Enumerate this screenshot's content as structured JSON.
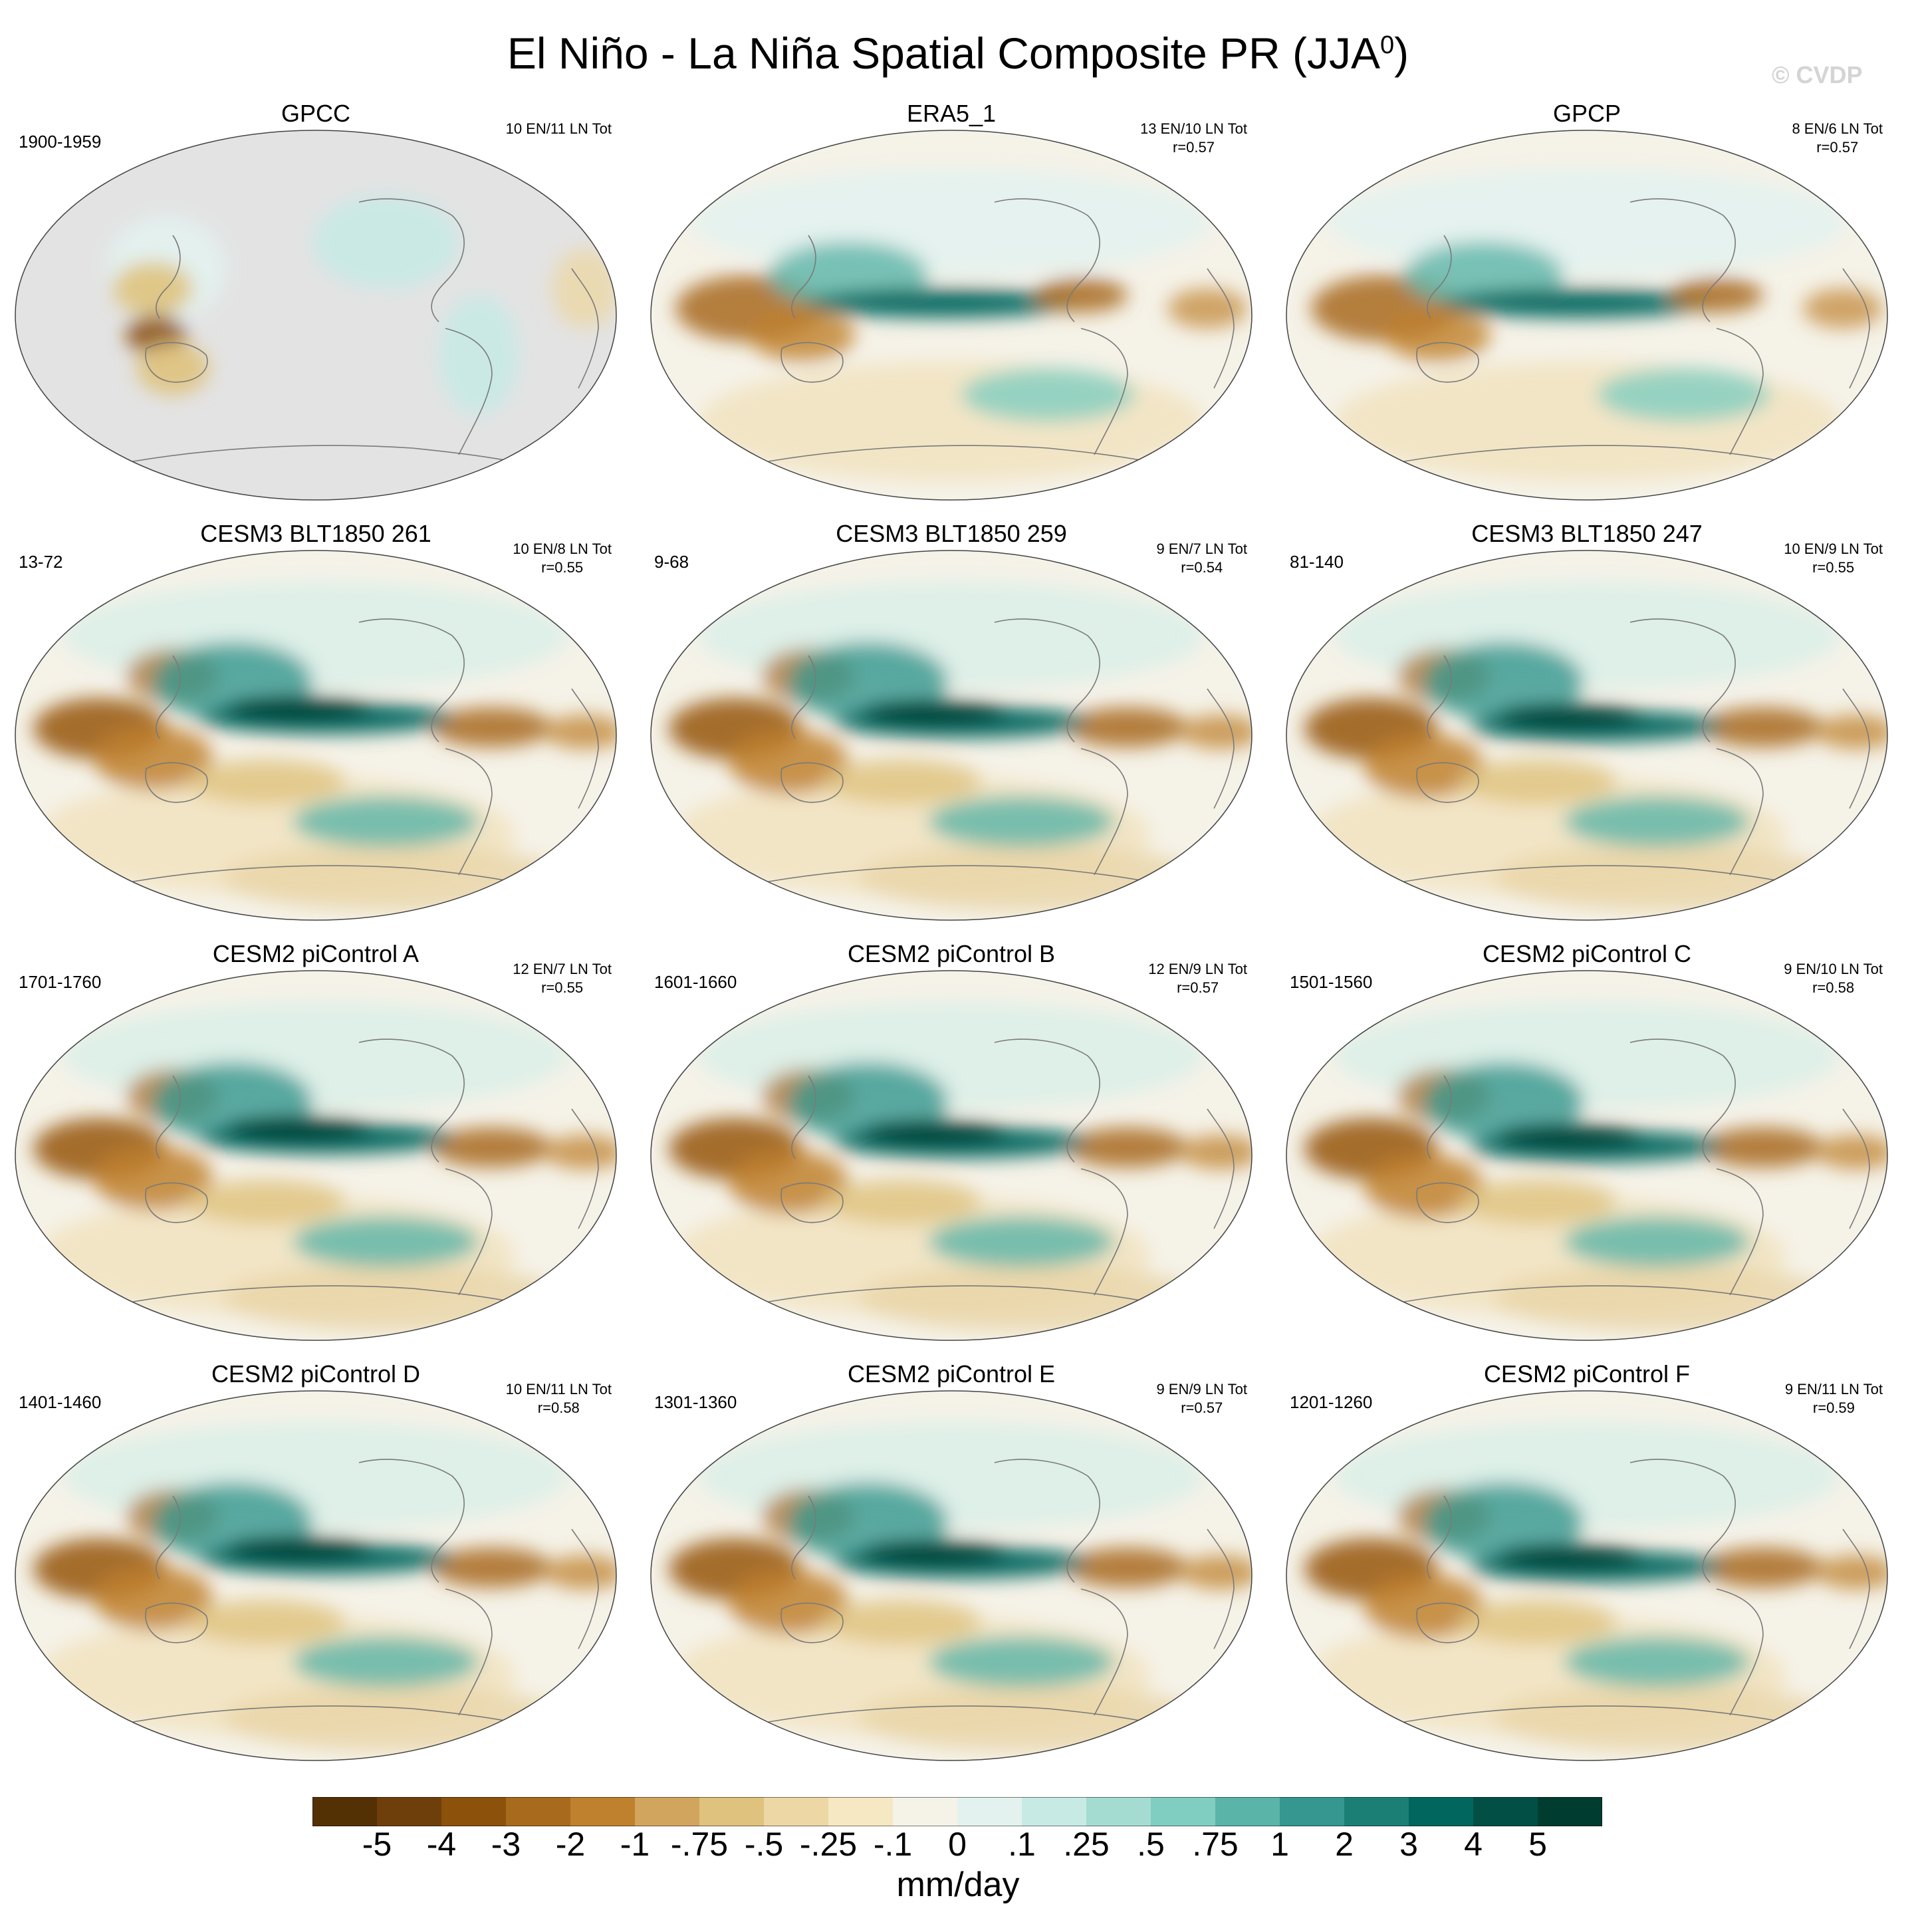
{
  "figure": {
    "title": "El Niño - La Niña Spatial Composite PR (JJA",
    "title_superscript": "0",
    "title_close": ")",
    "watermark": "© CVDP"
  },
  "panels": [
    {
      "name": "GPCC",
      "period": "1900-1959",
      "stats_line1": "10 EN/11 LN Tot",
      "stats_line2": "",
      "style": "land"
    },
    {
      "name": "ERA5_1",
      "period": "",
      "stats_line1": "13 EN/10 LN Tot",
      "stats_line2": "r=0.57",
      "style": "obs"
    },
    {
      "name": "GPCP",
      "period": "",
      "stats_line1": "8 EN/6 LN Tot",
      "stats_line2": "r=0.57",
      "style": "obs"
    },
    {
      "name": "CESM3 BLT1850 261",
      "period": "13-72",
      "stats_line1": "10 EN/8 LN Tot",
      "stats_line2": "r=0.55",
      "style": "model"
    },
    {
      "name": "CESM3 BLT1850 259",
      "period": "9-68",
      "stats_line1": "9 EN/7 LN Tot",
      "stats_line2": "r=0.54",
      "style": "model"
    },
    {
      "name": "CESM3 BLT1850 247",
      "period": "81-140",
      "stats_line1": "10 EN/9 LN Tot",
      "stats_line2": "r=0.55",
      "style": "model"
    },
    {
      "name": "CESM2 piControl A",
      "period": "1701-1760",
      "stats_line1": "12 EN/7 LN Tot",
      "stats_line2": "r=0.55",
      "style": "model"
    },
    {
      "name": "CESM2 piControl B",
      "period": "1601-1660",
      "stats_line1": "12 EN/9 LN Tot",
      "stats_line2": "r=0.57",
      "style": "model"
    },
    {
      "name": "CESM2 piControl C",
      "period": "1501-1560",
      "stats_line1": "9 EN/10 LN Tot",
      "stats_line2": "r=0.58",
      "style": "model"
    },
    {
      "name": "CESM2 piControl D",
      "period": "1401-1460",
      "stats_line1": "10 EN/11 LN Tot",
      "stats_line2": "r=0.58",
      "style": "model"
    },
    {
      "name": "CESM2 piControl E",
      "period": "1301-1360",
      "stats_line1": "9 EN/9 LN Tot",
      "stats_line2": "r=0.57",
      "style": "model"
    },
    {
      "name": "CESM2 piControl F",
      "period": "1201-1260",
      "stats_line1": "9 EN/11 LN Tot",
      "stats_line2": "r=0.59",
      "style": "model"
    }
  ],
  "colorbar": {
    "units": "mm/day",
    "labels": [
      "-5",
      "-4",
      "-3",
      "-2",
      "-1",
      "-.75",
      "-.5",
      "-.25",
      "-.1",
      "0",
      ".1",
      ".25",
      ".5",
      ".75",
      "1",
      "2",
      "3",
      "4",
      "5"
    ],
    "colors": [
      "#543005",
      "#6f3f0b",
      "#8c510a",
      "#a86a1d",
      "#bf812d",
      "#d2a55e",
      "#dfc27d",
      "#ecd7a5",
      "#f6e8c3",
      "#f5f2e8",
      "#e3f2ef",
      "#c7eae5",
      "#a5dcd2",
      "#80cdc1",
      "#5ab4a8",
      "#35978f",
      "#1c7f76",
      "#01665e",
      "#014f45",
      "#003c30"
    ]
  }
}
